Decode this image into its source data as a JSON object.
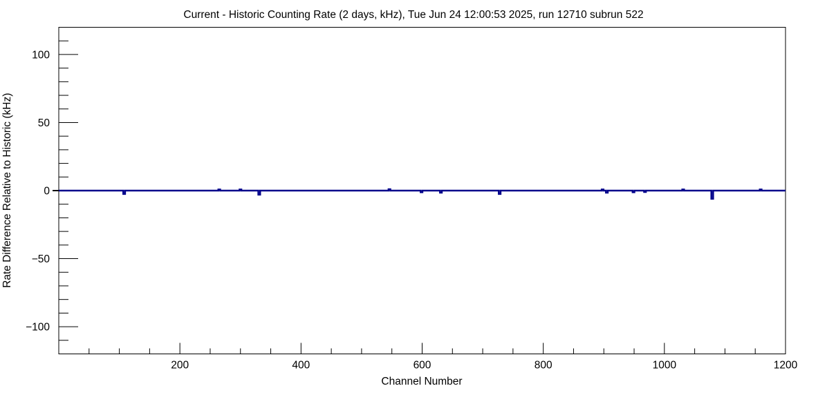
{
  "window": {
    "background_color": "#ffffff"
  },
  "chart_data": {
    "type": "line",
    "title": "Current - Historic Counting Rate (2 days, kHz), Tue Jun 24 12:00:53 2025, run 12710 subrun 522",
    "xlabel": "Channel Number",
    "ylabel": "Rate Difference Relative to Historic (kHz)",
    "xlim": [
      0,
      1200
    ],
    "ylim": [
      -120,
      120
    ],
    "x_major_ticks": [
      200,
      400,
      600,
      800,
      1000,
      1200
    ],
    "x_minor_step": 50,
    "y_major_ticks": [
      -100,
      -50,
      0,
      50,
      100
    ],
    "y_minor_step": 10,
    "grid": false,
    "legend_shown": false,
    "frame_color": "#000000",
    "line_color": "#00008b",
    "series": [
      {
        "name": "rate_difference_vs_channel",
        "baseline_value": 0,
        "spikes": [
          {
            "channel": 108,
            "value": -2.5
          },
          {
            "channel": 265,
            "value": 0.8
          },
          {
            "channel": 300,
            "value": 0.8
          },
          {
            "channel": 331,
            "value": -3.0
          },
          {
            "channel": 546,
            "value": 1.0
          },
          {
            "channel": 599,
            "value": -1.2
          },
          {
            "channel": 631,
            "value": -1.5
          },
          {
            "channel": 728,
            "value": -2.5
          },
          {
            "channel": 898,
            "value": 0.8
          },
          {
            "channel": 905,
            "value": -1.5
          },
          {
            "channel": 949,
            "value": -1.2
          },
          {
            "channel": 968,
            "value": -1.0
          },
          {
            "channel": 1031,
            "value": 0.8
          },
          {
            "channel": 1079,
            "value": -6.0
          },
          {
            "channel": 1159,
            "value": 0.8
          }
        ]
      }
    ]
  }
}
